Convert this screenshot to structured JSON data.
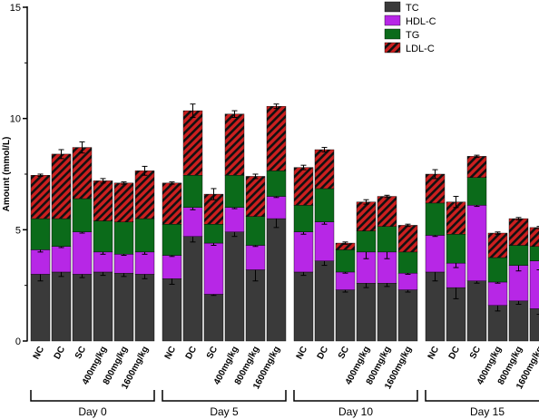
{
  "chart_data": {
    "type": "bar",
    "stacked": true,
    "ylabel": "Amount (mmol/L)",
    "ylim": [
      0,
      15
    ],
    "yticks": [
      "0",
      "5",
      "10",
      "15"
    ],
    "categories": [
      "NC",
      "DC",
      "SC",
      "400mg/kg",
      "800mg/kg",
      "1600mg/kg"
    ],
    "groups": [
      "Day 0",
      "Day 5",
      "Day 10",
      "Day 15"
    ],
    "legend_position": "top-right",
    "series": [
      {
        "name": "TC",
        "color": "#3a3a3a",
        "pattern": "solid",
        "values": [
          [
            3.0,
            3.1,
            3.0,
            3.1,
            3.05,
            3.0
          ],
          [
            2.8,
            4.7,
            2.1,
            4.9,
            3.2,
            5.5
          ],
          [
            3.1,
            3.6,
            2.3,
            2.6,
            2.6,
            2.3
          ],
          [
            3.1,
            2.4,
            2.7,
            1.6,
            1.8,
            1.45
          ]
        ],
        "errors": [
          [
            0.3,
            0.2,
            0.15,
            0.15,
            0.15,
            0.2
          ],
          [
            0.25,
            0.25,
            0.05,
            0.2,
            0.5,
            0.4
          ],
          [
            0.15,
            0.2,
            0.1,
            0.2,
            0.15,
            0.1
          ],
          [
            0.4,
            0.5,
            0.1,
            0.25,
            0.15,
            0.25
          ]
        ]
      },
      {
        "name": "HDL-C",
        "color": "#b727e6",
        "pattern": "solid",
        "values": [
          [
            1.1,
            1.15,
            1.9,
            0.9,
            0.85,
            1.0
          ],
          [
            1.05,
            1.3,
            2.3,
            1.1,
            1.1,
            1.0
          ],
          [
            1.8,
            1.75,
            0.8,
            1.4,
            1.4,
            0.75
          ],
          [
            1.65,
            1.1,
            3.4,
            1.05,
            1.6,
            2.15
          ]
        ],
        "errors": [
          [
            0.1,
            0.05,
            0.05,
            0.1,
            0.05,
            0.1
          ],
          [
            0.05,
            0.1,
            0.1,
            0.05,
            0.05,
            0.05
          ],
          [
            0.1,
            0.1,
            0.05,
            0.3,
            0.3,
            0.05
          ],
          [
            0.05,
            0.2,
            0.05,
            0.05,
            0.25,
            0.4
          ]
        ]
      },
      {
        "name": "TG",
        "color": "#0b6b1a",
        "pattern": "solid",
        "values": [
          [
            1.4,
            1.25,
            1.5,
            1.4,
            1.45,
            1.5
          ],
          [
            1.4,
            1.45,
            0.85,
            1.45,
            1.3,
            1.15
          ],
          [
            1.2,
            1.5,
            1.0,
            0.95,
            1.15,
            0.95
          ],
          [
            1.45,
            1.3,
            1.25,
            1.1,
            0.9,
            0.65
          ]
        ],
        "errors": [
          [
            0,
            0,
            0,
            0,
            0,
            0
          ],
          [
            0,
            0,
            0,
            0,
            0,
            0
          ],
          [
            0,
            0,
            0,
            0,
            0,
            0
          ],
          [
            0,
            0,
            0,
            0,
            0,
            0
          ]
        ]
      },
      {
        "name": "LDL-C",
        "color": "#cc1f1f",
        "pattern": "hatched",
        "values": [
          [
            1.95,
            2.9,
            2.3,
            1.8,
            1.75,
            2.15
          ],
          [
            1.85,
            2.9,
            1.35,
            2.75,
            1.8,
            2.9
          ],
          [
            1.7,
            1.75,
            0.3,
            1.3,
            1.35,
            1.2
          ],
          [
            1.3,
            1.45,
            0.95,
            1.1,
            1.2,
            0.85
          ]
        ],
        "errors": [
          [
            0.05,
            0.2,
            0.25,
            0.1,
            0.05,
            0.2
          ],
          [
            0.05,
            0.3,
            0.25,
            0.15,
            0.1,
            0.1
          ],
          [
            0.1,
            0.1,
            0.05,
            0.1,
            0.05,
            0.05
          ],
          [
            0.2,
            0.25,
            0.05,
            0.05,
            0.05,
            0.05
          ]
        ]
      }
    ]
  }
}
